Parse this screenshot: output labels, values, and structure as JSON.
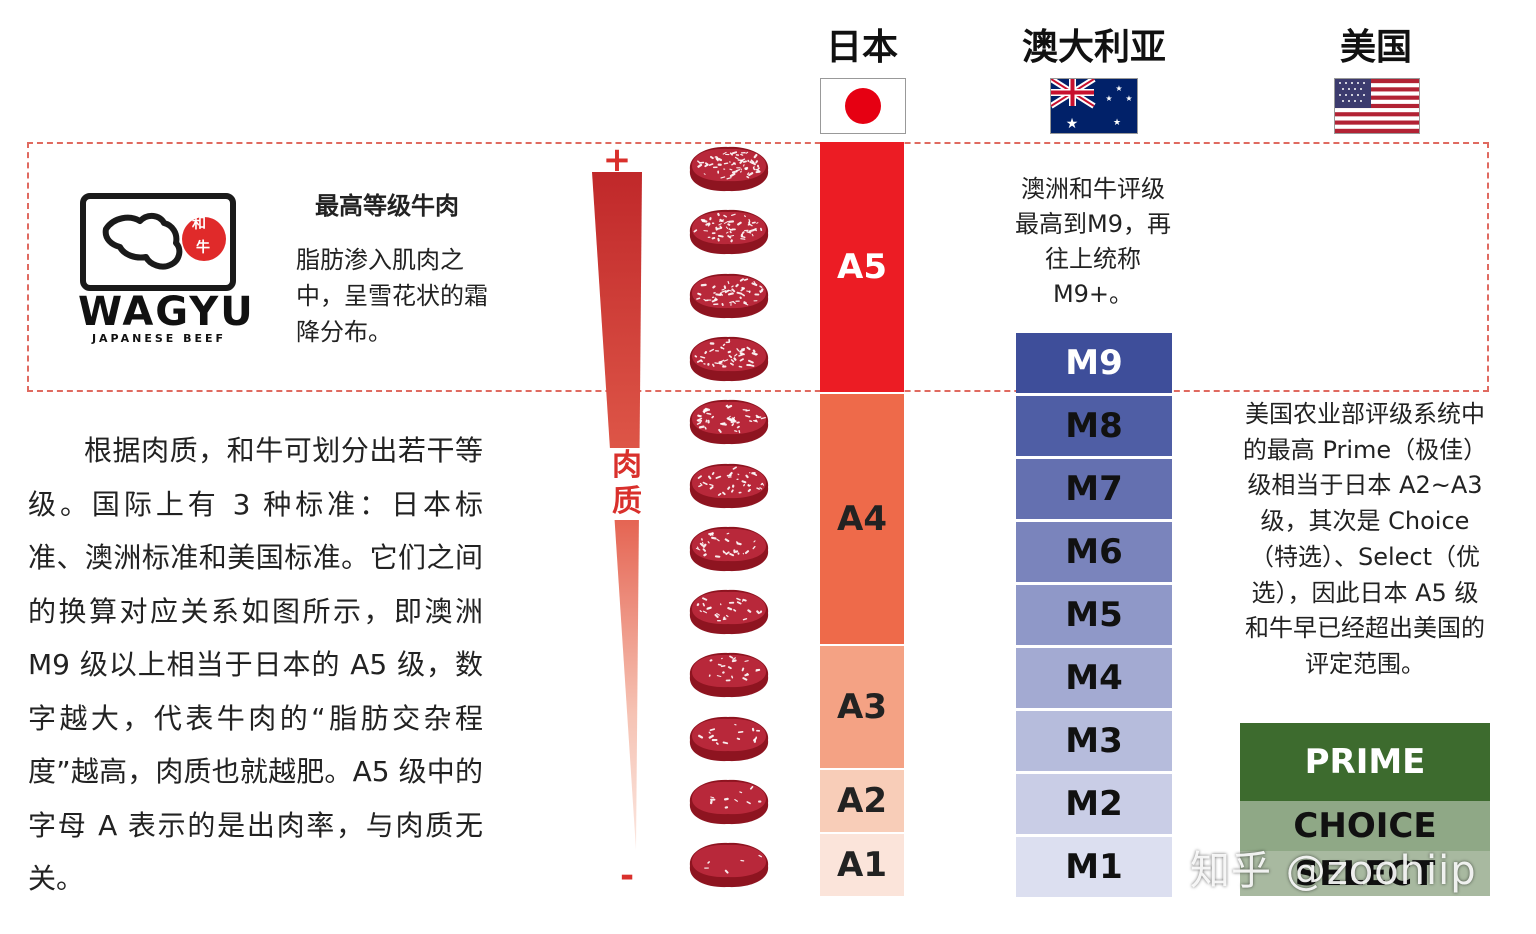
{
  "headers": {
    "japan": "日本",
    "australia": "澳大利亚",
    "usa": "美国"
  },
  "logo": {
    "word": "WAGYU",
    "sub": "JAPANESE BEEF",
    "char1": "和",
    "char2": "牛"
  },
  "top_section": {
    "title": "最高等级牛肉",
    "description": "脂肪渗入肌肉之中，呈雪花状的霜降分布。"
  },
  "main_text": "根据肉质，和牛可划分出若干等级。国际上有 3 种标准：日本标准、澳洲标准和美国标准。它们之间的换算对应关系如图所示，即澳洲 M9 级以上相当于日本的 A5 级，数字越大，代表牛肉的“脂肪交杂程度”越高，肉质也就越肥。A5 级中的字母 A 表示的是出肉率，与肉质无关。",
  "scale": {
    "label": "肉质",
    "plus": "+",
    "minus": "-"
  },
  "japan_grades": [
    {
      "label": "A5",
      "color": "#ec1c24",
      "text_color": "#ffffff"
    },
    {
      "label": "A4",
      "color": "#ee6a4a",
      "text_color": "#222222"
    },
    {
      "label": "A3",
      "color": "#f4a284",
      "text_color": "#222222"
    },
    {
      "label": "A2",
      "color": "#f8cdb8",
      "text_color": "#222222"
    },
    {
      "label": "A1",
      "color": "#fbe4da",
      "text_color": "#222222"
    }
  ],
  "australia": {
    "note": "澳洲和牛评级最高到M9，再往上统称 M9+。",
    "grades": [
      {
        "label": "M9",
        "color": "#3e4e9a",
        "text_color": "#ffffff"
      },
      {
        "label": "M8",
        "color": "#4f5ea5",
        "text_color": "#111111"
      },
      {
        "label": "M7",
        "color": "#6470b0",
        "text_color": "#111111"
      },
      {
        "label": "M6",
        "color": "#7a84bc",
        "text_color": "#111111"
      },
      {
        "label": "M5",
        "color": "#8f98c8",
        "text_color": "#111111"
      },
      {
        "label": "M4",
        "color": "#a3aad2",
        "text_color": "#111111"
      },
      {
        "label": "M3",
        "color": "#b6bcdc",
        "text_color": "#111111"
      },
      {
        "label": "M2",
        "color": "#c9cde6",
        "text_color": "#111111"
      },
      {
        "label": "M1",
        "color": "#dcdff0",
        "text_color": "#111111"
      }
    ]
  },
  "usa": {
    "note": "美国农业部评级系统中的最高 Prime（极佳）级相当于日本 A2~A3 级，其次是 Choice（特选）、Select（优选），因此日本 A5 级和牛早已经超出美国的评定范围。",
    "grades": [
      {
        "label": "PRIME",
        "color": "#3d6b2e",
        "text_color": "#ffffff"
      },
      {
        "label": "CHOICE",
        "color": "#8fa886",
        "text_color": "#111111"
      },
      {
        "label": "SELECT",
        "color": "#a8b9a0",
        "text_color": "#111111"
      }
    ]
  },
  "watermark": "知乎 @zoohiip",
  "colors": {
    "accent_red": "#d9302c",
    "dash": "#e06a60",
    "meat_dark": "#8e1420",
    "marbling": "#ffffff"
  }
}
